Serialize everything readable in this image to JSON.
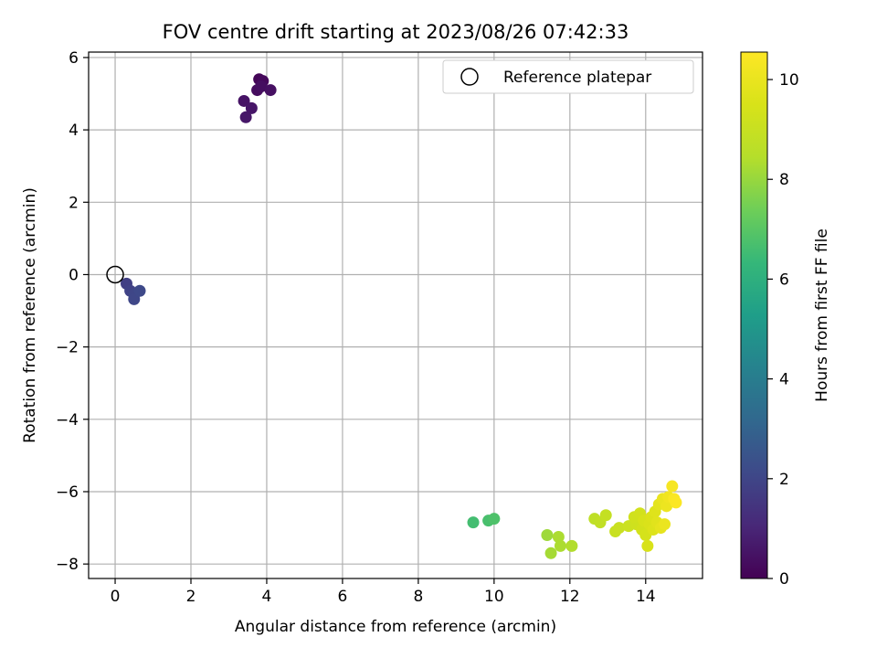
{
  "chart_data": {
    "type": "scatter",
    "title": "FOV centre drift starting at 2023/08/26 07:42:33",
    "xlabel": "Angular distance from reference (arcmin)",
    "ylabel": "Rotation from reference (arcmin)",
    "xlim": [
      -0.7,
      15.5
    ],
    "ylim": [
      -8.4,
      6.15
    ],
    "xticks": [
      0,
      2,
      4,
      6,
      8,
      10,
      12,
      14
    ],
    "yticks": [
      -8,
      -6,
      -4,
      -2,
      0,
      2,
      4,
      6
    ],
    "grid": true,
    "legend": {
      "position": "top-right",
      "entries": [
        "Reference platepar"
      ]
    },
    "reference_point": {
      "x": 0,
      "y": 0,
      "label": "Reference platepar"
    },
    "colorbar": {
      "label": "Hours from first FF file",
      "range": [
        0,
        10.55
      ],
      "ticks": [
        0,
        2,
        4,
        6,
        8,
        10
      ],
      "colormap": "viridis"
    },
    "points": [
      {
        "x": 3.8,
        "y": 5.4,
        "t": 0.1
      },
      {
        "x": 3.9,
        "y": 5.35,
        "t": 0.2
      },
      {
        "x": 3.75,
        "y": 5.1,
        "t": 0.3
      },
      {
        "x": 3.85,
        "y": 5.2,
        "t": 0.35
      },
      {
        "x": 4.1,
        "y": 5.1,
        "t": 0.4
      },
      {
        "x": 3.4,
        "y": 4.8,
        "t": 0.5
      },
      {
        "x": 3.6,
        "y": 4.6,
        "t": 0.55
      },
      {
        "x": 3.45,
        "y": 4.35,
        "t": 0.6
      },
      {
        "x": 0.3,
        "y": -0.25,
        "t": 1.8
      },
      {
        "x": 0.4,
        "y": -0.45,
        "t": 1.9
      },
      {
        "x": 0.5,
        "y": -0.55,
        "t": 2.0
      },
      {
        "x": 0.5,
        "y": -0.68,
        "t": 2.05
      },
      {
        "x": 0.65,
        "y": -0.45,
        "t": 2.1
      },
      {
        "x": 9.45,
        "y": -6.85,
        "t": 6.6
      },
      {
        "x": 9.85,
        "y": -6.8,
        "t": 6.7
      },
      {
        "x": 10.0,
        "y": -6.75,
        "t": 6.8
      },
      {
        "x": 11.4,
        "y": -7.2,
        "t": 8.1
      },
      {
        "x": 11.5,
        "y": -7.7,
        "t": 8.2
      },
      {
        "x": 11.7,
        "y": -7.25,
        "t": 8.3
      },
      {
        "x": 11.75,
        "y": -7.5,
        "t": 8.3
      },
      {
        "x": 12.05,
        "y": -7.5,
        "t": 8.4
      },
      {
        "x": 12.65,
        "y": -6.75,
        "t": 8.7
      },
      {
        "x": 12.8,
        "y": -6.85,
        "t": 8.8
      },
      {
        "x": 12.95,
        "y": -6.65,
        "t": 8.9
      },
      {
        "x": 13.2,
        "y": -7.1,
        "t": 9.0
      },
      {
        "x": 13.3,
        "y": -7.0,
        "t": 9.05
      },
      {
        "x": 13.55,
        "y": -6.95,
        "t": 9.1
      },
      {
        "x": 13.75,
        "y": -6.9,
        "t": 9.2
      },
      {
        "x": 13.7,
        "y": -6.7,
        "t": 9.25
      },
      {
        "x": 13.85,
        "y": -6.6,
        "t": 9.3
      },
      {
        "x": 13.9,
        "y": -7.05,
        "t": 9.35
      },
      {
        "x": 14.0,
        "y": -7.2,
        "t": 9.4
      },
      {
        "x": 13.95,
        "y": -6.8,
        "t": 9.45
      },
      {
        "x": 14.05,
        "y": -7.5,
        "t": 9.5
      },
      {
        "x": 14.1,
        "y": -6.9,
        "t": 9.55
      },
      {
        "x": 14.15,
        "y": -6.7,
        "t": 9.6
      },
      {
        "x": 14.2,
        "y": -7.05,
        "t": 9.65
      },
      {
        "x": 14.25,
        "y": -6.55,
        "t": 9.7
      },
      {
        "x": 14.3,
        "y": -6.85,
        "t": 9.75
      },
      {
        "x": 14.35,
        "y": -6.35,
        "t": 9.85
      },
      {
        "x": 14.4,
        "y": -7.0,
        "t": 9.9
      },
      {
        "x": 14.45,
        "y": -6.2,
        "t": 10.0
      },
      {
        "x": 14.5,
        "y": -6.9,
        "t": 10.05
      },
      {
        "x": 14.55,
        "y": -6.4,
        "t": 10.1
      },
      {
        "x": 14.6,
        "y": -6.15,
        "t": 10.2
      },
      {
        "x": 14.7,
        "y": -5.85,
        "t": 10.35
      },
      {
        "x": 14.75,
        "y": -6.2,
        "t": 10.45
      },
      {
        "x": 14.8,
        "y": -6.3,
        "t": 10.5
      }
    ]
  }
}
